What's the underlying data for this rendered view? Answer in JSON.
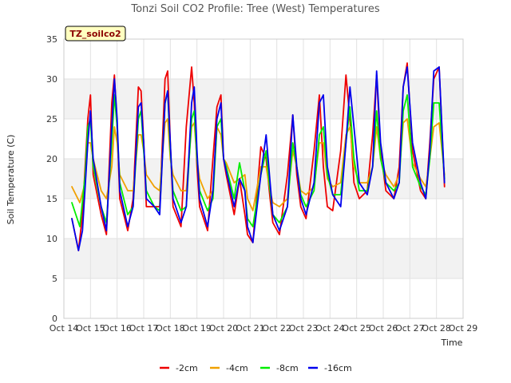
{
  "chart_data": {
    "type": "line",
    "title": "Tonzi Soil CO2 Profile: Tree (West) Temperatures",
    "badge": "TZ_soilco2",
    "xlabel": "Time",
    "ylabel": "Soil Temperature (C)",
    "xlim": [
      14,
      29
    ],
    "ylim": [
      0,
      35
    ],
    "yticks": [
      0,
      5,
      10,
      15,
      20,
      25,
      30,
      35
    ],
    "xticks": [
      {
        "v": 14,
        "label": "Oct 14"
      },
      {
        "v": 15,
        "label": "Oct 15"
      },
      {
        "v": 16,
        "label": "Oct 16"
      },
      {
        "v": 17,
        "label": "Oct 17"
      },
      {
        "v": 18,
        "label": "Oct 18"
      },
      {
        "v": 19,
        "label": "Oct 19"
      },
      {
        "v": 20,
        "label": "Oct 20"
      },
      {
        "v": 21,
        "label": "Oct 21"
      },
      {
        "v": 22,
        "label": "Oct 22"
      },
      {
        "v": 23,
        "label": "Oct 23"
      },
      {
        "v": 24,
        "label": "Oct 24"
      },
      {
        "v": 25,
        "label": "Oct 25"
      },
      {
        "v": 26,
        "label": "Oct 26"
      },
      {
        "v": 27,
        "label": "Oct 27"
      },
      {
        "v": 28,
        "label": "Oct 28"
      },
      {
        "v": 29,
        "label": "Oct 29"
      }
    ],
    "grid": true,
    "legend_position": "bottom",
    "series": [
      {
        "name": "-2cm",
        "color": "#ee0000",
        "x": [
          14.3,
          14.55,
          14.7,
          14.9,
          15.0,
          15.1,
          15.4,
          15.6,
          15.8,
          15.9,
          16.0,
          16.1,
          16.4,
          16.6,
          16.8,
          16.9,
          17.0,
          17.1,
          17.4,
          17.6,
          17.8,
          17.9,
          18.0,
          18.1,
          18.4,
          18.6,
          18.8,
          18.9,
          19.0,
          19.1,
          19.4,
          19.6,
          19.75,
          19.9,
          20.0,
          20.1,
          20.4,
          20.6,
          20.8,
          20.9,
          21.1,
          21.4,
          21.6,
          21.75,
          21.85,
          22.1,
          22.4,
          22.6,
          22.75,
          22.9,
          23.1,
          23.4,
          23.6,
          23.75,
          23.9,
          24.1,
          24.4,
          24.6,
          24.75,
          24.9,
          25.1,
          25.4,
          25.6,
          25.75,
          25.9,
          26.1,
          26.4,
          26.6,
          26.75,
          26.9,
          27.1,
          27.4,
          27.6,
          27.75,
          27.9,
          28.1,
          28.3
        ],
        "y": [
          12.5,
          8.5,
          13,
          25,
          28,
          18,
          13,
          10.5,
          27,
          30.5,
          24,
          15,
          11,
          15,
          29,
          28.5,
          22,
          14,
          14,
          14,
          30,
          31,
          22,
          14,
          11.5,
          24,
          31.5,
          27,
          19,
          14,
          11,
          20,
          26.5,
          28,
          20,
          18,
          13,
          17.5,
          13,
          10.5,
          9.5,
          21.5,
          20,
          15,
          12,
          10.5,
          18,
          25.5,
          18,
          14,
          12.5,
          21,
          28,
          19,
          14,
          13.5,
          21,
          30.5,
          25,
          17,
          15,
          16,
          23,
          30.5,
          21,
          16,
          15,
          19,
          29,
          32,
          21,
          16,
          15,
          22,
          30,
          31.5,
          16.5
        ]
      },
      {
        "name": "-4cm",
        "color": "#f0a000",
        "x": [
          14.3,
          14.6,
          14.8,
          14.9,
          15.0,
          15.1,
          15.4,
          15.6,
          15.8,
          15.9,
          16.0,
          16.1,
          16.4,
          16.6,
          16.8,
          16.9,
          17.0,
          17.1,
          17.4,
          17.6,
          17.8,
          17.9,
          18.0,
          18.1,
          18.4,
          18.6,
          18.8,
          18.9,
          19.0,
          19.1,
          19.4,
          19.6,
          19.75,
          19.9,
          20.0,
          20.1,
          20.4,
          20.6,
          20.8,
          20.9,
          21.1,
          21.4,
          21.6,
          21.75,
          21.85,
          22.1,
          22.4,
          22.6,
          22.75,
          22.9,
          23.1,
          23.4,
          23.6,
          23.75,
          23.9,
          24.1,
          24.4,
          24.6,
          24.75,
          24.9,
          25.1,
          25.4,
          25.6,
          25.75,
          25.9,
          26.1,
          26.4,
          26.6,
          26.75,
          26.9,
          27.1,
          27.4,
          27.6,
          27.75,
          27.9,
          28.1,
          28.3
        ],
        "y": [
          16.5,
          14.5,
          17,
          22,
          22,
          20,
          16,
          15,
          19,
          24,
          22,
          18,
          16,
          16,
          23,
          23,
          21,
          18,
          16.5,
          16,
          24.5,
          25,
          20,
          18,
          16,
          16,
          24,
          24.5,
          20,
          17.5,
          15,
          16,
          24,
          23,
          20,
          19.5,
          17,
          17.5,
          18,
          15,
          13.5,
          19,
          19,
          16,
          14.5,
          14,
          15,
          21,
          19,
          16,
          15.5,
          16.5,
          22,
          22,
          17.5,
          16.5,
          17,
          23,
          24,
          19,
          17,
          17,
          19,
          24,
          20,
          18,
          16.5,
          18,
          24.5,
          25,
          19.5,
          17.5,
          16.5,
          20,
          24,
          24.5,
          18
        ]
      },
      {
        "name": "-8cm",
        "color": "#00ee00",
        "x": [
          14.3,
          14.6,
          14.8,
          14.9,
          15.0,
          15.1,
          15.4,
          15.6,
          15.8,
          15.9,
          16.0,
          16.1,
          16.4,
          16.6,
          16.8,
          16.9,
          17.0,
          17.1,
          17.4,
          17.6,
          17.8,
          17.9,
          18.0,
          18.1,
          18.4,
          18.6,
          18.8,
          18.9,
          19.0,
          19.1,
          19.4,
          19.6,
          19.75,
          19.9,
          20.0,
          20.1,
          20.4,
          20.6,
          20.8,
          20.9,
          21.1,
          21.4,
          21.6,
          21.75,
          21.85,
          22.1,
          22.4,
          22.6,
          22.75,
          22.9,
          23.1,
          23.4,
          23.6,
          23.75,
          23.9,
          24.1,
          24.4,
          24.6,
          24.75,
          24.9,
          25.1,
          25.4,
          25.6,
          25.75,
          25.9,
          26.1,
          26.4,
          26.6,
          26.75,
          26.9,
          27.1,
          27.4,
          27.6,
          27.75,
          27.9,
          28.1,
          28.3
        ],
        "y": [
          14.5,
          11.5,
          18,
          24,
          25,
          19,
          14,
          12,
          22,
          28,
          24,
          17,
          13,
          14,
          25,
          26,
          21,
          16,
          14,
          13.5,
          27,
          28.5,
          21,
          16,
          13.5,
          14,
          25,
          26,
          20,
          16,
          13.5,
          15,
          24,
          25,
          20,
          19,
          15,
          19.5,
          16,
          12.5,
          11.5,
          18,
          21,
          16,
          13,
          12,
          14,
          22,
          19,
          15.5,
          14,
          16,
          23,
          24,
          18,
          15.5,
          15.5,
          22,
          26.5,
          20,
          16,
          16,
          19,
          26,
          20,
          17,
          16,
          17,
          26,
          28,
          19,
          16.5,
          15.5,
          20,
          27,
          27,
          17.5
        ]
      },
      {
        "name": "-16cm",
        "color": "#0000ee",
        "x": [
          14.3,
          14.55,
          14.7,
          14.9,
          15.0,
          15.1,
          15.4,
          15.6,
          15.8,
          15.9,
          16.0,
          16.1,
          16.4,
          16.6,
          16.8,
          16.9,
          17.0,
          17.1,
          17.4,
          17.6,
          17.8,
          17.9,
          18.0,
          18.1,
          18.4,
          18.6,
          18.8,
          18.9,
          19.0,
          19.1,
          19.4,
          19.6,
          19.75,
          19.9,
          20.0,
          20.1,
          20.4,
          20.6,
          20.8,
          20.9,
          21.1,
          21.4,
          21.6,
          21.75,
          21.85,
          22.1,
          22.4,
          22.6,
          22.75,
          22.9,
          23.1,
          23.4,
          23.6,
          23.75,
          23.9,
          24.1,
          24.4,
          24.6,
          24.75,
          24.9,
          25.1,
          25.4,
          25.6,
          25.75,
          25.9,
          26.1,
          26.4,
          26.6,
          26.75,
          26.9,
          27.1,
          27.4,
          27.6,
          27.75,
          27.9,
          28.1,
          28.3
        ],
        "y": [
          12.5,
          8.5,
          11,
          22,
          26,
          20,
          14,
          11,
          24,
          30,
          25,
          16,
          11.5,
          14,
          26.5,
          27,
          22,
          15,
          14,
          13,
          27,
          28.5,
          22,
          15,
          12,
          14,
          27,
          29,
          21,
          15,
          11.5,
          16,
          25,
          27,
          20,
          18.5,
          14,
          17.5,
          16,
          11.5,
          9.5,
          18,
          23,
          17,
          13,
          11,
          14,
          25.5,
          19,
          15,
          13,
          17,
          27,
          28,
          19,
          15.5,
          14,
          22,
          29,
          24,
          17,
          15.5,
          19,
          31,
          22,
          17,
          15,
          17,
          29,
          31.5,
          22,
          17,
          15,
          21,
          31,
          31.5,
          17
        ]
      }
    ]
  }
}
